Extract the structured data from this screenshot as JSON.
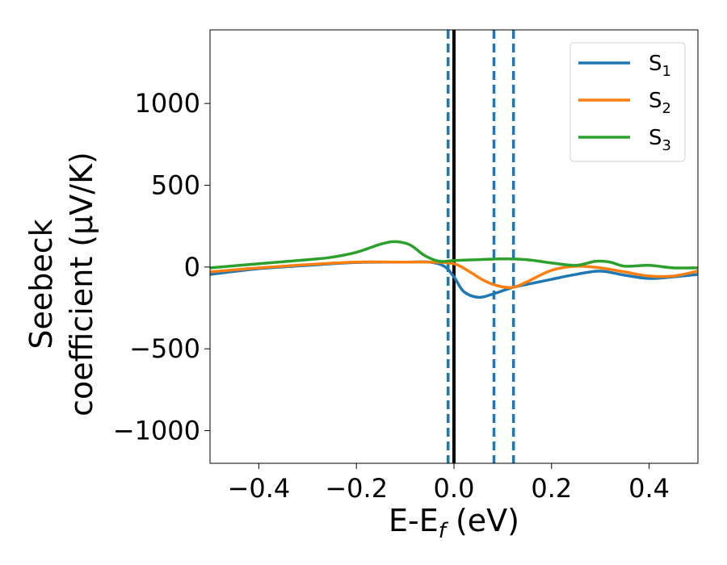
{
  "chart_data": {
    "type": "line",
    "title": "",
    "xlabel": {
      "main": "E-E",
      "sub": "f",
      "suffix": " (eV)"
    },
    "ylabel": {
      "line1": "Seebeck",
      "line2": "coefficient  (μV/K)"
    },
    "xlim": [
      -0.5,
      0.5
    ],
    "ylim": [
      -1200,
      1450
    ],
    "xticks": [
      -0.4,
      -0.2,
      0.0,
      0.2,
      0.4
    ],
    "xtick_labels": [
      "−0.4",
      "−0.2",
      "0.0",
      "0.2",
      "0.4"
    ],
    "yticks": [
      -1000,
      -500,
      0,
      500,
      1000
    ],
    "ytick_labels": [
      "−1000",
      "−500",
      "0",
      "500",
      "1000"
    ],
    "legend_position": "top-right",
    "series": [
      {
        "name": "S1",
        "label_main": "S",
        "label_sub": "1",
        "color": "#1f77b4",
        "x": [
          -0.5,
          -0.4,
          -0.3,
          -0.2,
          -0.1,
          -0.05,
          -0.02,
          0.0,
          0.02,
          0.05,
          0.08,
          0.12,
          0.16,
          0.2,
          0.25,
          0.3,
          0.35,
          0.4,
          0.45,
          0.5
        ],
        "y": [
          -45,
          -10,
          10,
          28,
          30,
          30,
          5,
          -60,
          -150,
          -185,
          -165,
          -125,
          -100,
          -75,
          -45,
          -25,
          -50,
          -70,
          -60,
          -45
        ]
      },
      {
        "name": "S2",
        "label_main": "S",
        "label_sub": "2",
        "color": "#ff7f0e",
        "x": [
          -0.5,
          -0.4,
          -0.3,
          -0.2,
          -0.1,
          -0.05,
          0.0,
          0.03,
          0.06,
          0.09,
          0.12,
          0.15,
          0.2,
          0.25,
          0.3,
          0.35,
          0.4,
          0.45,
          0.5
        ],
        "y": [
          -30,
          -5,
          15,
          30,
          30,
          30,
          20,
          -25,
          -80,
          -115,
          -125,
          -90,
          -20,
          5,
          -5,
          -30,
          -55,
          -55,
          -25
        ]
      },
      {
        "name": "S3",
        "label_main": "S",
        "label_sub": "3",
        "color": "#2ca02c",
        "x": [
          -0.5,
          -0.4,
          -0.3,
          -0.25,
          -0.2,
          -0.15,
          -0.12,
          -0.09,
          -0.06,
          -0.03,
          0.0,
          0.05,
          0.1,
          0.15,
          0.2,
          0.25,
          0.29,
          0.32,
          0.35,
          0.4,
          0.45,
          0.5
        ],
        "y": [
          -5,
          20,
          45,
          60,
          90,
          140,
          155,
          135,
          70,
          35,
          40,
          45,
          50,
          45,
          25,
          10,
          35,
          30,
          5,
          10,
          -5,
          -5
        ]
      }
    ],
    "reference_lines": [
      {
        "x": 0.0,
        "style": "solid",
        "color": "#000000"
      },
      {
        "x": -0.012,
        "style": "dashed",
        "color": "#1f77b4"
      },
      {
        "x": 0.082,
        "style": "dashed",
        "color": "#1f77b4"
      },
      {
        "x": 0.122,
        "style": "dashed",
        "color": "#1f77b4"
      }
    ]
  }
}
